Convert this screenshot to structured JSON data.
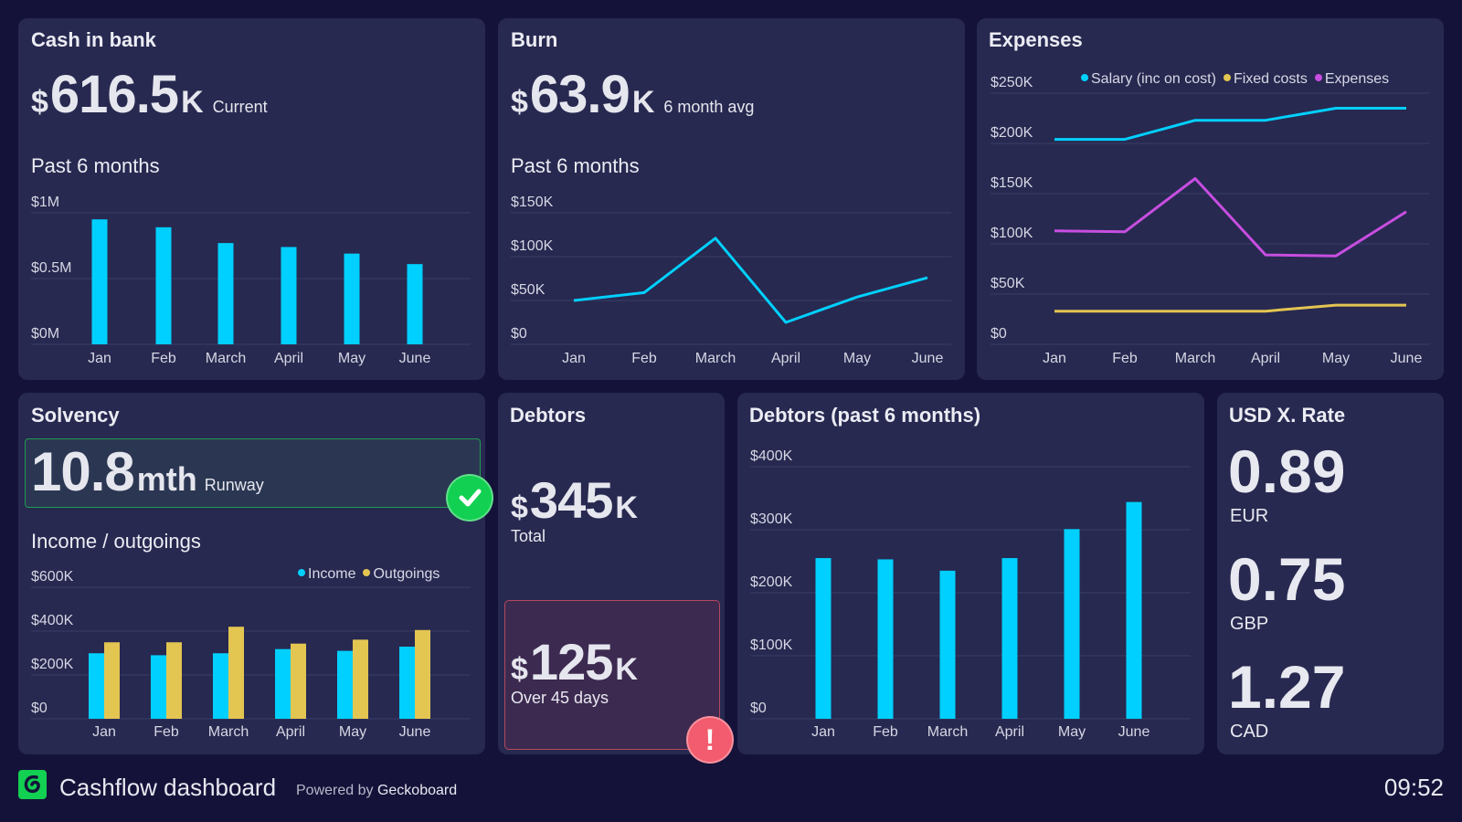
{
  "colors": {
    "background": "#15123a",
    "panel": "#272950",
    "cyan": "#00d0ff",
    "yellow": "#e3c552",
    "purple": "#c74ee0",
    "green": "#12d052",
    "red": "#f25c6e"
  },
  "cash": {
    "title": "Cash in bank",
    "prefix": "$",
    "value": "616.5",
    "suffix": "K",
    "caption": "Current",
    "subtitle": "Past 6 months"
  },
  "burn": {
    "title": "Burn",
    "prefix": "$",
    "value": "63.9",
    "suffix": "K",
    "caption": "6 month avg",
    "subtitle": "Past 6 months"
  },
  "expenses": {
    "title": "Expenses",
    "legend": [
      "Salary (inc on cost)",
      "Fixed costs",
      "Expenses"
    ]
  },
  "solvency": {
    "title": "Solvency",
    "value": "10.8",
    "unit": "mth",
    "caption": "Runway",
    "status_icon": "check-icon",
    "subtitle": "Income / outgoings",
    "legend": [
      "Income",
      "Outgoings"
    ]
  },
  "debtors": {
    "title": "Debtors",
    "total_prefix": "$",
    "total_value": "345",
    "total_suffix": "K",
    "total_caption": "Total",
    "overdue_prefix": "$",
    "overdue_value": "125",
    "overdue_suffix": "K",
    "overdue_caption": "Over 45 days",
    "alert_icon": "exclamation-icon"
  },
  "debtors_chart": {
    "title": "Debtors (past 6 months)"
  },
  "fx": {
    "title": "USD X. Rate",
    "rates": [
      {
        "value": "0.89",
        "currency": "EUR"
      },
      {
        "value": "0.75",
        "currency": "GBP"
      },
      {
        "value": "1.27",
        "currency": "CAD"
      }
    ]
  },
  "footer": {
    "logo_icon": "geckoboard-logo-icon",
    "title": "Cashflow dashboard",
    "powered_by": "Powered by",
    "brand": "Geckoboard",
    "time": "09:52"
  },
  "chart_data": [
    {
      "type": "bar",
      "categories": [
        "Jan",
        "Feb",
        "March",
        "April",
        "May",
        "June"
      ],
      "unit": "$M",
      "ylim": [
        0,
        1
      ],
      "yticks": [
        0,
        0.5,
        1
      ],
      "ytick_labels": [
        "$0M",
        "$0.5M",
        "$1M"
      ],
      "grid": true,
      "series": [
        {
          "values": [
            0.95,
            0.89,
            0.77,
            0.74,
            0.69,
            0.61
          ],
          "color": "#00d0ff"
        }
      ]
    },
    {
      "type": "line",
      "categories": [
        "Jan",
        "Feb",
        "March",
        "April",
        "May",
        "June"
      ],
      "unit": "$K",
      "ylim": [
        0,
        150
      ],
      "yticks": [
        0,
        50,
        100,
        150
      ],
      "ytick_labels": [
        "$0",
        "$50K",
        "$100K",
        "$150K"
      ],
      "grid": true,
      "series": [
        {
          "values": [
            50,
            59,
            121,
            25,
            54,
            76
          ],
          "color": "#00d0ff"
        }
      ]
    },
    {
      "type": "line",
      "categories": [
        "Jan",
        "Feb",
        "March",
        "April",
        "May",
        "June"
      ],
      "unit": "$K",
      "ylim": [
        0,
        250
      ],
      "yticks": [
        0,
        50,
        100,
        150,
        200,
        250
      ],
      "ytick_labels": [
        "$0",
        "$50K",
        "$100K",
        "$150K",
        "$200K",
        "$250K"
      ],
      "grid": true,
      "legend": "top",
      "series": [
        {
          "name": "Salary (inc on cost)",
          "values": [
            204,
            204,
            223,
            223,
            235,
            235
          ],
          "color": "#00d0ff"
        },
        {
          "name": "Fixed costs",
          "values": [
            33,
            33,
            33,
            33,
            39,
            39
          ],
          "color": "#e3c552"
        },
        {
          "name": "Expenses",
          "values": [
            113,
            112,
            165,
            89,
            88,
            132
          ],
          "color": "#c74ee0"
        }
      ]
    },
    {
      "type": "bar",
      "categories": [
        "Jan",
        "Feb",
        "March",
        "April",
        "May",
        "June"
      ],
      "unit": "$K",
      "ylim": [
        0,
        600
      ],
      "yticks": [
        0,
        200,
        400,
        600
      ],
      "ytick_labels": [
        "$0",
        "$200K",
        "$400K",
        "$600K"
      ],
      "grid": true,
      "legend": "top-right",
      "series": [
        {
          "name": "Income",
          "values": [
            299,
            290,
            299,
            318,
            310,
            329
          ],
          "color": "#00d0ff"
        },
        {
          "name": "Outgoings",
          "values": [
            349,
            349,
            420,
            343,
            361,
            405
          ],
          "color": "#e3c552"
        }
      ]
    },
    {
      "type": "bar",
      "categories": [
        "Jan",
        "Feb",
        "March",
        "April",
        "May",
        "June"
      ],
      "unit": "$K",
      "ylim": [
        0,
        400
      ],
      "yticks": [
        0,
        100,
        200,
        300,
        400
      ],
      "ytick_labels": [
        "$0",
        "$100K",
        "$200K",
        "$300K",
        "$400K"
      ],
      "grid": true,
      "series": [
        {
          "values": [
            255,
            253,
            235,
            255,
            301,
            344
          ],
          "color": "#00d0ff"
        }
      ]
    }
  ]
}
